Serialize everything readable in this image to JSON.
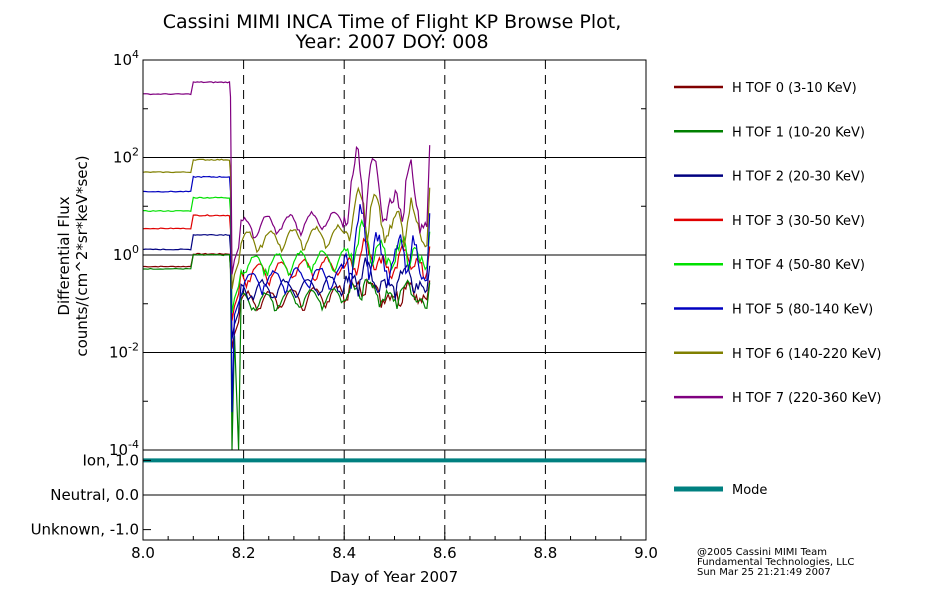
{
  "chart_data": {
    "type": "line",
    "title": [
      "Cassini MIMI INCA Time of Flight KP Browse Plot,",
      "Year: 2007 DOY: 008"
    ],
    "xlabel": "Day of Year 2007",
    "ylabel": [
      "Differential Flux",
      "counts/(cm^2*sr*keV*sec)"
    ],
    "xlim": [
      8.0,
      9.0
    ],
    "ylim": [
      0.0001,
      10000
    ],
    "y_scale": "log",
    "x_ticks": [
      "8.0",
      "8.2",
      "8.4",
      "8.6",
      "8.8",
      "9.0"
    ],
    "y_ticks": [
      {
        "mantissa": "10",
        "exp": "4",
        "value": 10000
      },
      {
        "mantissa": "10",
        "exp": "2",
        "value": 100
      },
      {
        "mantissa": "10",
        "exp": "0",
        "value": 1
      },
      {
        "mantissa": "10",
        "exp": "-2",
        "value": 0.01
      },
      {
        "mantissa": "10",
        "exp": "-4",
        "value": 0.0001
      }
    ],
    "grid": "major y gridlines solid, x gridlines dashed",
    "series": [
      {
        "name": "H TOF 0 (3-10 KeV)",
        "color": "#800000",
        "base": 0.58,
        "step": 1.05,
        "active": 0.12,
        "peak": 0.5
      },
      {
        "name": "H TOF 1 (10-20 KeV)",
        "color": "#008000",
        "base": 0.52,
        "step": 1.0,
        "active": 0.11,
        "peak": 0.45
      },
      {
        "name": "H TOF 2 (20-30 KeV)",
        "color": "#000080",
        "base": 1.3,
        "step": 2.6,
        "active": 0.19,
        "peak": 1.0
      },
      {
        "name": "H TOF 3 (30-50 KeV)",
        "color": "#e00000",
        "base": 3.5,
        "step": 6.5,
        "active": 0.45,
        "peak": 2.5
      },
      {
        "name": "H TOF 4 (50-80 KeV)",
        "color": "#00e000",
        "base": 8.0,
        "step": 15,
        "active": 0.65,
        "peak": 5
      },
      {
        "name": "H TOF 5 (80-140 KeV)",
        "color": "#0000c0",
        "base": 20,
        "step": 40,
        "active": 0.3,
        "peak": 12
      },
      {
        "name": "H TOF 6 (140-220 KeV)",
        "color": "#808000",
        "base": 50,
        "step": 90,
        "active": 2.0,
        "peak": 40
      },
      {
        "name": "H TOF 7 (220-360 KeV)",
        "color": "#800080",
        "base": 2000,
        "step": 3500,
        "active": 4.0,
        "peak": 300
      }
    ],
    "mode_panel": {
      "y_ticks": [
        "Ion, 1.0",
        "Neutral, 0.0",
        "Unknown, -1.0"
      ],
      "ylim": [
        -1.3,
        1.3
      ],
      "series": {
        "name": "Mode",
        "color": "#008080",
        "value": 1.0
      }
    }
  },
  "credits": [
    "@2005 Cassini MIMI Team",
    "Fundamental Technologies, LLC",
    "Sun Mar 25 21:21:49 2007"
  ]
}
